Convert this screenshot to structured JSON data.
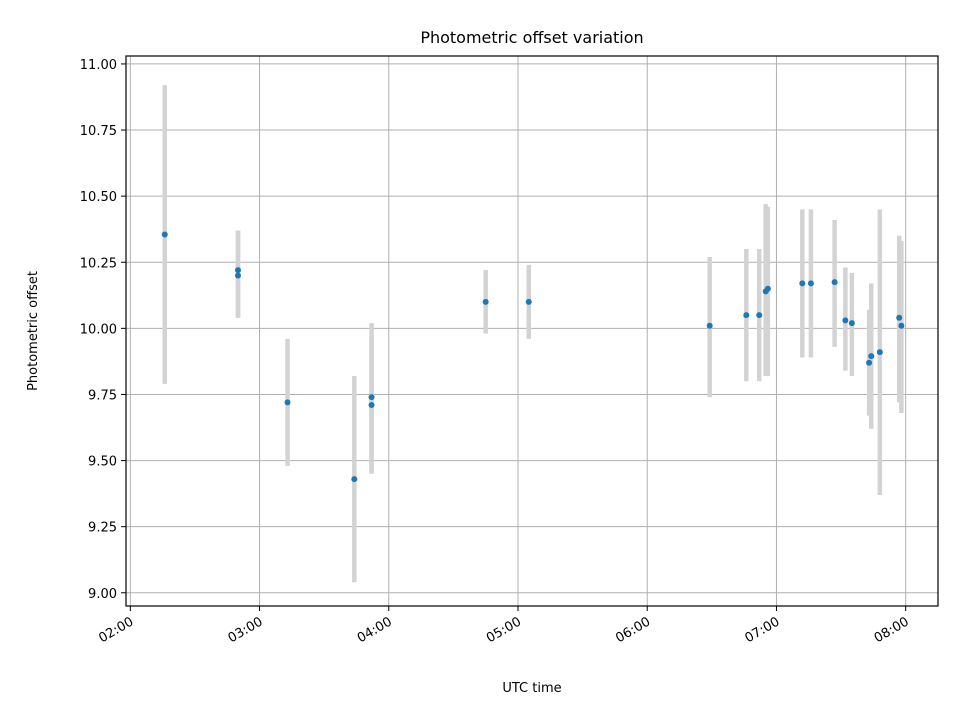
{
  "chart_data": {
    "type": "scatter",
    "title": "Photometric offset variation",
    "xlabel": "UTC time",
    "ylabel": "Photometric offset",
    "xlim": [
      "01:58",
      "08:15"
    ],
    "ylim": [
      8.95,
      11.03
    ],
    "grid": true,
    "x_ticks": [
      "02:00",
      "03:00",
      "04:00",
      "05:00",
      "06:00",
      "07:00",
      "08:00"
    ],
    "y_ticks": [
      "9.00",
      "9.25",
      "9.50",
      "9.75",
      "10.00",
      "10.25",
      "10.50",
      "10.75",
      "11.00"
    ],
    "colors": {
      "points": "#1f77b4",
      "error_bars": "#d3d3d3",
      "grid": "#b0b0b0"
    },
    "points": [
      {
        "x": "02:16",
        "y": 10.355,
        "ylo": 9.79,
        "yhi": 10.92
      },
      {
        "x": "02:50",
        "y": 10.22,
        "ylo": 10.04,
        "yhi": 10.37
      },
      {
        "x": "02:50",
        "y": 10.2,
        "ylo": 10.04,
        "yhi": 10.37
      },
      {
        "x": "03:13",
        "y": 9.72,
        "ylo": 9.48,
        "yhi": 9.96
      },
      {
        "x": "03:44",
        "y": 9.43,
        "ylo": 9.04,
        "yhi": 9.82
      },
      {
        "x": "03:52",
        "y": 9.74,
        "ylo": 9.46,
        "yhi": 10.02
      },
      {
        "x": "03:52",
        "y": 9.71,
        "ylo": 9.45,
        "yhi": 9.97
      },
      {
        "x": "04:45",
        "y": 10.1,
        "ylo": 9.98,
        "yhi": 10.22
      },
      {
        "x": "05:05",
        "y": 10.1,
        "ylo": 9.96,
        "yhi": 10.24
      },
      {
        "x": "06:29",
        "y": 10.01,
        "ylo": 9.74,
        "yhi": 10.27
      },
      {
        "x": "06:46",
        "y": 10.05,
        "ylo": 9.8,
        "yhi": 10.3
      },
      {
        "x": "06:52",
        "y": 10.05,
        "ylo": 9.8,
        "yhi": 10.3
      },
      {
        "x": "06:55",
        "y": 10.14,
        "ylo": 9.82,
        "yhi": 10.47
      },
      {
        "x": "06:56",
        "y": 10.15,
        "ylo": 9.82,
        "yhi": 10.46
      },
      {
        "x": "07:12",
        "y": 10.17,
        "ylo": 9.89,
        "yhi": 10.45
      },
      {
        "x": "07:16",
        "y": 10.17,
        "ylo": 9.89,
        "yhi": 10.45
      },
      {
        "x": "07:27",
        "y": 10.175,
        "ylo": 9.93,
        "yhi": 10.41
      },
      {
        "x": "07:32",
        "y": 10.03,
        "ylo": 9.84,
        "yhi": 10.23
      },
      {
        "x": "07:35",
        "y": 10.02,
        "ylo": 9.82,
        "yhi": 10.21
      },
      {
        "x": "07:43",
        "y": 9.87,
        "ylo": 9.67,
        "yhi": 10.07
      },
      {
        "x": "07:44",
        "y": 9.895,
        "ylo": 9.62,
        "yhi": 10.17
      },
      {
        "x": "07:48",
        "y": 9.91,
        "ylo": 9.37,
        "yhi": 10.45
      },
      {
        "x": "07:57",
        "y": 10.04,
        "ylo": 9.72,
        "yhi": 10.35
      },
      {
        "x": "07:58",
        "y": 10.01,
        "ylo": 9.68,
        "yhi": 10.33
      }
    ]
  }
}
